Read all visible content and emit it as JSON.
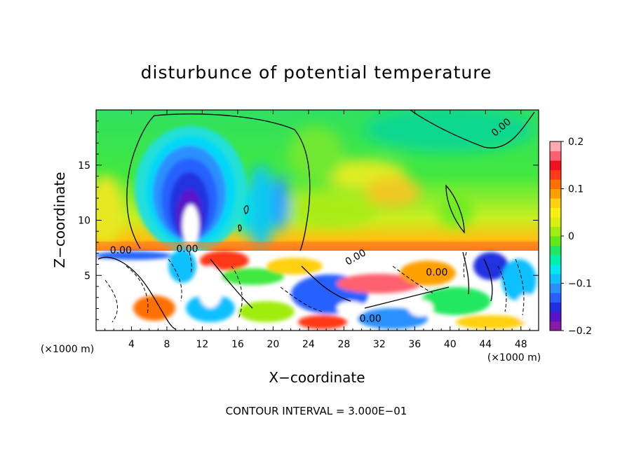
{
  "chart_data": {
    "type": "heatmap",
    "title": "disturbunce of potential temperature",
    "xlabel": "X−coordinate",
    "ylabel": "Z−coordinate",
    "x_unit": "(×1000 m)",
    "x_unit_right": "(×1000 m)",
    "footer": "CONTOUR INTERVAL = 3.000E−01",
    "xlim": [
      0,
      50
    ],
    "ylim": [
      0,
      20
    ],
    "x_ticks": [
      4,
      8,
      12,
      16,
      20,
      24,
      28,
      32,
      36,
      40,
      44,
      48
    ],
    "y_ticks": [
      5,
      10,
      15
    ],
    "colorbar": {
      "min": -0.2,
      "max": 0.2,
      "ticks": [
        0.2,
        0.1,
        0,
        -0.1,
        -0.2
      ],
      "tick_labels": [
        "0.2",
        "0.1",
        "0",
        "−0.1",
        "−0.2"
      ],
      "colors": [
        "#8a1aa8",
        "#5a14c8",
        "#2030e0",
        "#2860ff",
        "#2a90ff",
        "#10c0ff",
        "#00e8f0",
        "#00f0b0",
        "#20e860",
        "#60e818",
        "#a0ec10",
        "#d8f010",
        "#f8f010",
        "#ffd010",
        "#ffa000",
        "#ff7000",
        "#ff3818",
        "#f01020",
        "#ff6070",
        "#ffa8b0"
      ]
    },
    "contour_labels": [
      {
        "text": "0.00",
        "x": 2.8,
        "z": 7.0
      },
      {
        "text": "0.00",
        "x": 10.3,
        "z": 7.1
      },
      {
        "text": "0.00",
        "x": 29.5,
        "z": 6.4
      },
      {
        "text": "0.00",
        "x": 38.5,
        "z": 5.0
      },
      {
        "text": "0.00",
        "x": 31.0,
        "z": 0.8
      },
      {
        "text": "0.00",
        "x": 46.0,
        "z": 18.2
      }
    ]
  }
}
